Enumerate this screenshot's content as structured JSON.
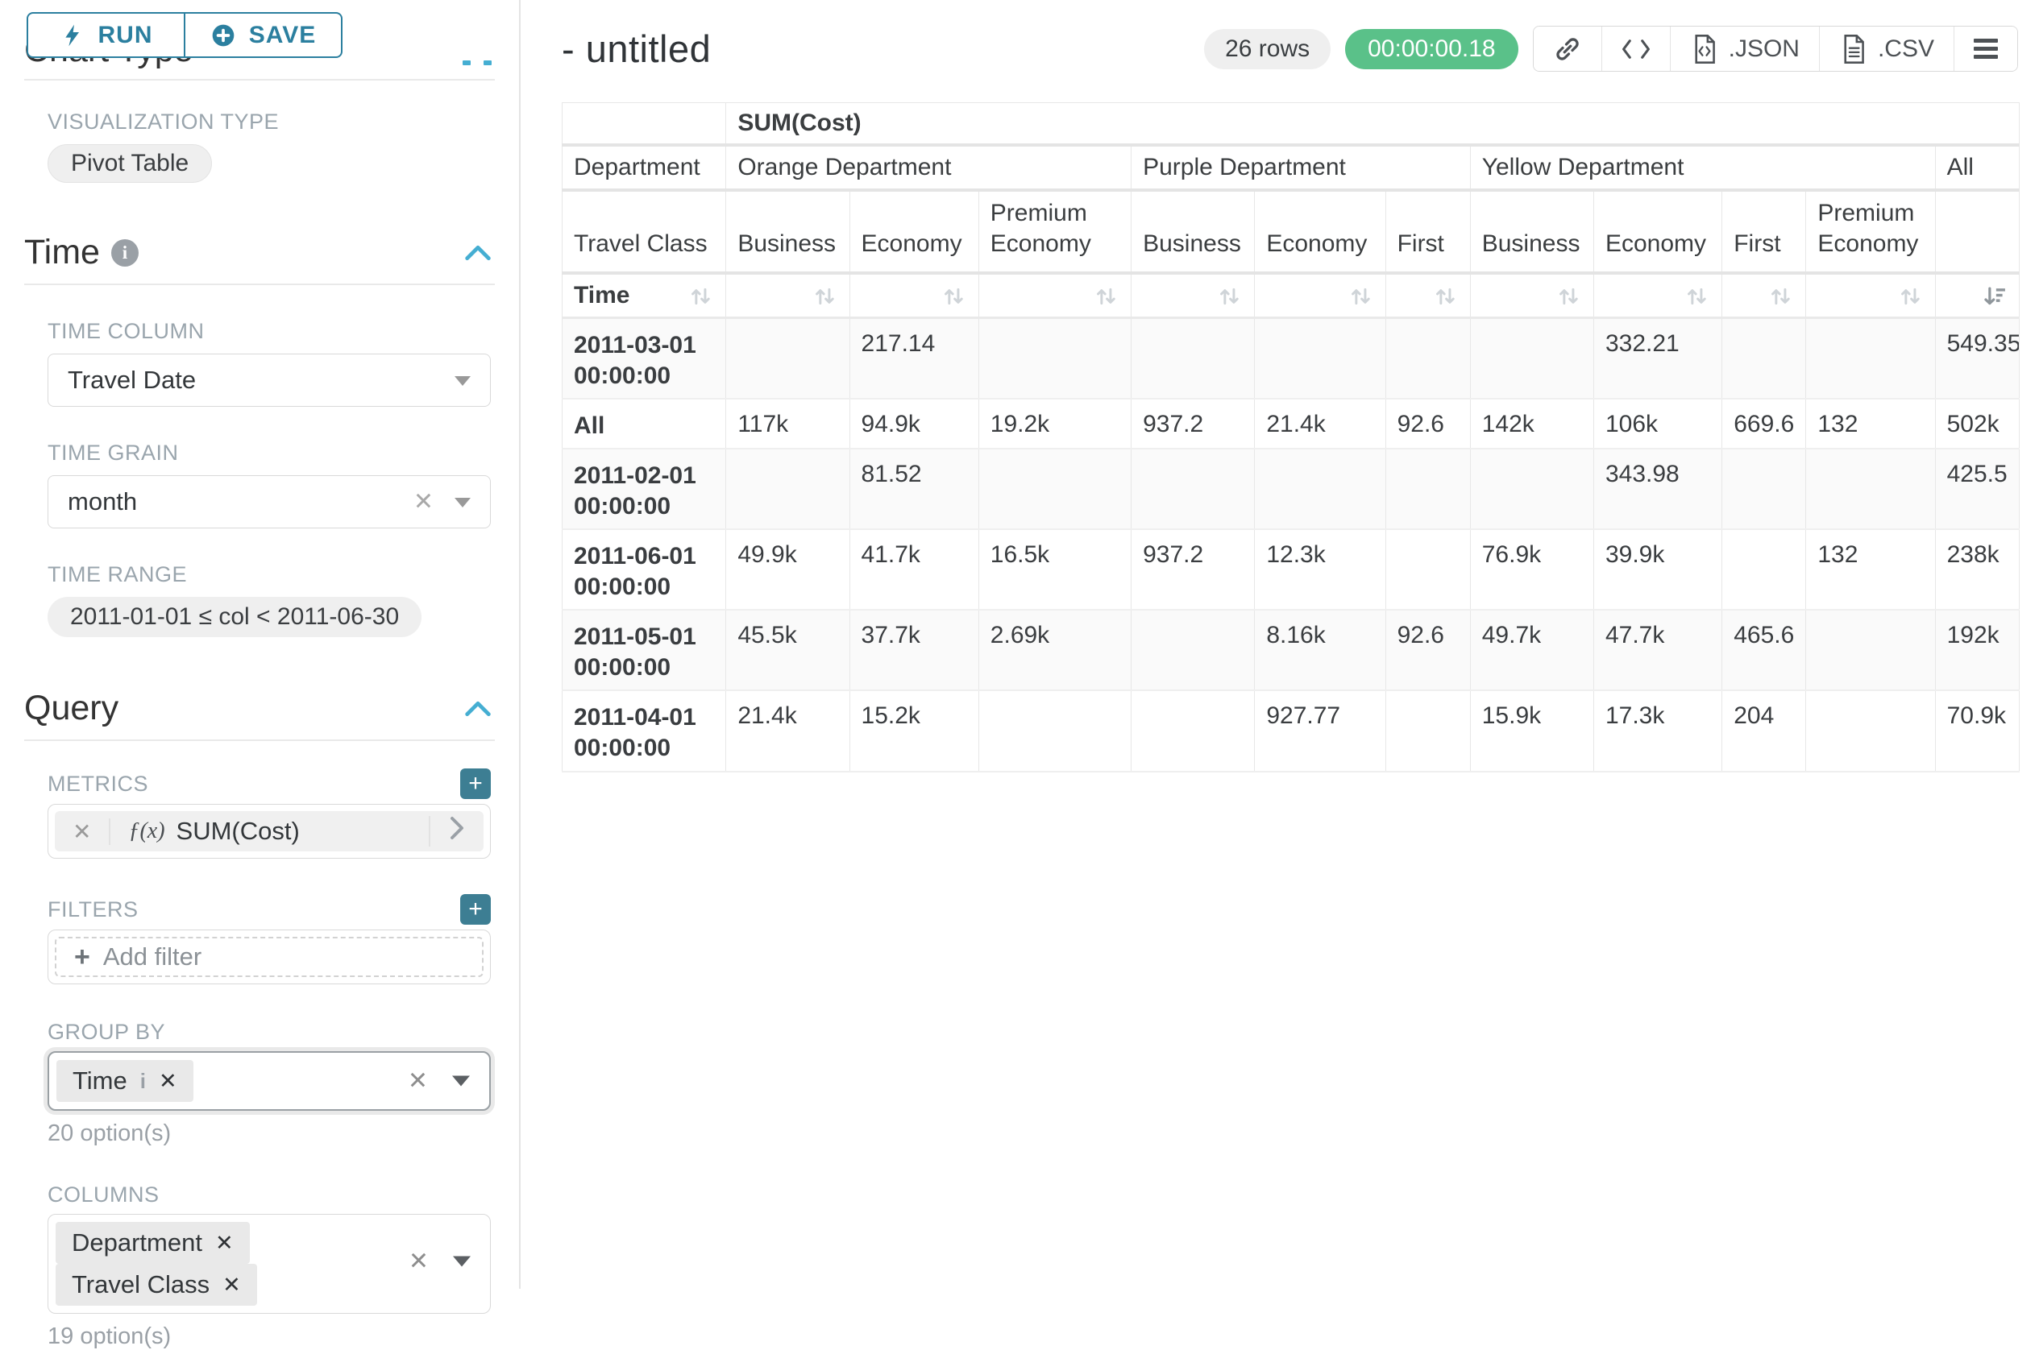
{
  "colors": {
    "accent_teal": "#2b7f9f",
    "chevron_blue": "#45aed2",
    "plus_button_teal": "#3d7e93",
    "success_green": "#5ac189",
    "pill_gray": "#efefef",
    "label_gray": "#9aa5ad",
    "table_border": "#e7e7e7"
  },
  "icons": {
    "run": "lightning-icon",
    "save": "plus-circle-icon",
    "time_info": "info-icon",
    "collapse": "chevron-up-icon",
    "add": "plus-icon",
    "metric_expand": "chevron-right-icon",
    "copy_link": "link-icon",
    "view_query": "code-icon",
    "export_json": "file-code-icon",
    "export_csv": "file-text-icon",
    "menu": "hamburger-icon",
    "sort": "sort-arrows-icon",
    "sort_active": "sort-descending-icon"
  },
  "sidebar": {
    "run_label": "RUN",
    "save_label": "SAVE",
    "chart_type_heading": "Chart Type",
    "viz": {
      "label": "VISUALIZATION TYPE",
      "value": "Pivot Table"
    },
    "time": {
      "heading": "Time",
      "column_label": "TIME COLUMN",
      "column_value": "Travel Date",
      "grain_label": "TIME GRAIN",
      "grain_value": "month",
      "range_label": "TIME RANGE",
      "range_value": "2011-01-01 ≤ col < 2011-06-30"
    },
    "query": {
      "heading": "Query",
      "metrics_label": "METRICS",
      "metric_fx": "ƒ(x)",
      "metric_value": "SUM(Cost)",
      "filters_label": "FILTERS",
      "add_filter_label": "Add filter",
      "group_by_label": "GROUP BY",
      "group_by_value": "Time",
      "group_by_hint": "20 option(s)",
      "columns_label": "COLUMNS",
      "column_values": [
        "Department",
        "Travel Class"
      ],
      "columns_hint": "19 option(s)"
    }
  },
  "header": {
    "title": "- untitled",
    "row_count": "26 rows",
    "duration": "00:00:00.18",
    "json_label": ".JSON",
    "csv_label": ".CSV"
  },
  "table": {
    "metric_header": "SUM(Cost)",
    "department_label": "Department",
    "travel_class_label": "Travel Class",
    "time_label": "Time",
    "departments": [
      {
        "name": "Orange Department",
        "classes": [
          "Business",
          "Economy",
          "Premium Economy"
        ]
      },
      {
        "name": "Purple Department",
        "classes": [
          "Business",
          "Economy",
          "First"
        ]
      },
      {
        "name": "Yellow Department",
        "classes": [
          "Business",
          "Economy",
          "First",
          "Premium Economy"
        ]
      },
      {
        "name": "All",
        "classes": [
          ""
        ]
      }
    ],
    "rows": [
      {
        "time": "2011-03-01 00:00:00",
        "values": [
          "",
          "217.14",
          "",
          "",
          "",
          "",
          "",
          "332.21",
          "",
          "",
          "549.35"
        ]
      },
      {
        "time": "All",
        "values": [
          "117k",
          "94.9k",
          "19.2k",
          "937.2",
          "21.4k",
          "92.6",
          "142k",
          "106k",
          "669.6",
          "132",
          "502k"
        ]
      },
      {
        "time": "2011-02-01 00:00:00",
        "values": [
          "",
          "81.52",
          "",
          "",
          "",
          "",
          "",
          "343.98",
          "",
          "",
          "425.5"
        ]
      },
      {
        "time": "2011-06-01 00:00:00",
        "values": [
          "49.9k",
          "41.7k",
          "16.5k",
          "937.2",
          "12.3k",
          "",
          "76.9k",
          "39.9k",
          "",
          "132",
          "238k"
        ]
      },
      {
        "time": "2011-05-01 00:00:00",
        "values": [
          "45.5k",
          "37.7k",
          "2.69k",
          "",
          "8.16k",
          "92.6",
          "49.7k",
          "47.7k",
          "465.6",
          "",
          "192k"
        ]
      },
      {
        "time": "2011-04-01 00:00:00",
        "values": [
          "21.4k",
          "15.2k",
          "",
          "",
          "927.77",
          "",
          "15.9k",
          "17.3k",
          "204",
          "",
          "70.9k"
        ]
      }
    ]
  }
}
